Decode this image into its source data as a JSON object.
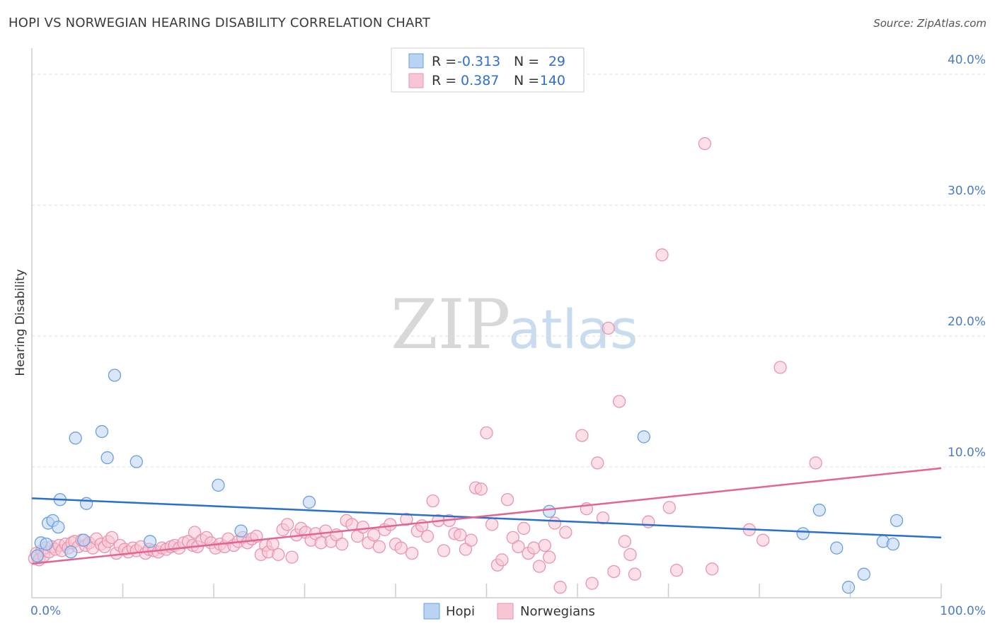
{
  "title": "HOPI VS NORWEGIAN HEARING DISABILITY CORRELATION CHART",
  "source": "Source: ZipAtlas.com",
  "watermark": {
    "zip": "ZIP",
    "atlas": "atlas"
  },
  "colors": {
    "hopi_fill": "#b9d3f3",
    "hopi_stroke": "#6a9fe0",
    "hopi_line": "#2b6fcc",
    "nor_fill": "#f7c6d4",
    "nor_stroke": "#e994b0",
    "nor_line": "#e26492",
    "grid": "#dddddd",
    "tick_text": "#4a7cc7"
  },
  "legend": {
    "rows": [
      {
        "series": "hopi",
        "r_label": "R =",
        "r_value": "-0.313",
        "n_label": "N =",
        "n_value": "29"
      },
      {
        "series": "nor",
        "r_label": "R =",
        "r_value": "0.387",
        "n_label": "N =",
        "n_value": "140"
      }
    ]
  },
  "chart_data": {
    "type": "scatter",
    "title": "HOPI VS NORWEGIAN HEARING DISABILITY CORRELATION CHART",
    "ylabel": "Hearing Disability",
    "xlim": [
      0,
      100
    ],
    "ylim": [
      0,
      42
    ],
    "x_tick_labels": [
      "0.0%",
      "100.0%"
    ],
    "y_ticks": [
      {
        "value": 10,
        "label": "10.0%"
      },
      {
        "value": 20,
        "label": "20.0%"
      },
      {
        "value": 30,
        "label": "30.0%"
      },
      {
        "value": 40,
        "label": "40.0%"
      }
    ],
    "series": [
      {
        "name": "Hopi",
        "key": "hopi",
        "trend": {
          "x": [
            0,
            100
          ],
          "y": [
            7.6,
            4.6
          ]
        },
        "points": [
          [
            0.6,
            3.2
          ],
          [
            1.0,
            4.2
          ],
          [
            1.6,
            4.1
          ],
          [
            1.8,
            5.7
          ],
          [
            2.3,
            5.9
          ],
          [
            2.9,
            5.4
          ],
          [
            3.1,
            7.5
          ],
          [
            4.3,
            3.5
          ],
          [
            4.8,
            12.2
          ],
          [
            5.7,
            4.4
          ],
          [
            6.0,
            7.2
          ],
          [
            7.7,
            12.7
          ],
          [
            8.3,
            10.7
          ],
          [
            9.1,
            17.0
          ],
          [
            11.5,
            10.4
          ],
          [
            13.0,
            4.3
          ],
          [
            20.5,
            8.6
          ],
          [
            23.0,
            5.1
          ],
          [
            30.5,
            7.3
          ],
          [
            56.9,
            6.6
          ],
          [
            67.3,
            12.3
          ],
          [
            84.8,
            4.9
          ],
          [
            86.6,
            6.7
          ],
          [
            88.5,
            3.8
          ],
          [
            89.8,
            0.8
          ],
          [
            91.5,
            1.8
          ],
          [
            93.6,
            4.3
          ],
          [
            94.7,
            4.1
          ],
          [
            95.1,
            5.9
          ]
        ]
      },
      {
        "name": "Norwegians",
        "key": "nor",
        "trend": {
          "x": [
            0,
            100
          ],
          "y": [
            2.6,
            9.9
          ]
        },
        "points": [
          [
            0.3,
            3.0
          ],
          [
            0.5,
            3.4
          ],
          [
            0.8,
            2.9
          ],
          [
            1.1,
            3.6
          ],
          [
            1.3,
            3.2
          ],
          [
            1.5,
            3.8
          ],
          [
            1.9,
            3.5
          ],
          [
            2.2,
            3.9
          ],
          [
            2.6,
            3.7
          ],
          [
            3.0,
            4.0
          ],
          [
            3.3,
            3.6
          ],
          [
            3.7,
            4.1
          ],
          [
            4.0,
            3.8
          ],
          [
            4.4,
            4.2
          ],
          [
            4.7,
            4.3
          ],
          [
            5.1,
            3.9
          ],
          [
            5.5,
            4.4
          ],
          [
            5.9,
            4.0
          ],
          [
            6.3,
            4.2
          ],
          [
            6.7,
            3.8
          ],
          [
            7.1,
            4.5
          ],
          [
            7.6,
            4.1
          ],
          [
            8.0,
            3.9
          ],
          [
            8.4,
            4.3
          ],
          [
            8.8,
            4.6
          ],
          [
            9.3,
            3.4
          ],
          [
            9.7,
            4.0
          ],
          [
            10.2,
            3.7
          ],
          [
            10.6,
            3.5
          ],
          [
            11.1,
            3.8
          ],
          [
            11.5,
            3.6
          ],
          [
            12.0,
            3.9
          ],
          [
            12.5,
            3.4
          ],
          [
            12.9,
            3.7
          ],
          [
            13.4,
            3.6
          ],
          [
            13.9,
            3.5
          ],
          [
            14.3,
            3.8
          ],
          [
            14.8,
            3.7
          ],
          [
            15.3,
            3.9
          ],
          [
            15.7,
            4.0
          ],
          [
            16.2,
            3.8
          ],
          [
            16.7,
            4.2
          ],
          [
            17.2,
            4.3
          ],
          [
            17.7,
            4.0
          ],
          [
            17.9,
            5.0
          ],
          [
            18.2,
            3.9
          ],
          [
            18.7,
            4.4
          ],
          [
            19.2,
            4.6
          ],
          [
            19.7,
            4.2
          ],
          [
            20.2,
            3.8
          ],
          [
            20.7,
            4.1
          ],
          [
            21.2,
            3.9
          ],
          [
            21.6,
            4.5
          ],
          [
            22.2,
            4.0
          ],
          [
            22.7,
            4.3
          ],
          [
            23.2,
            4.6
          ],
          [
            23.7,
            4.2
          ],
          [
            24.2,
            4.5
          ],
          [
            24.7,
            4.7
          ],
          [
            25.2,
            3.3
          ],
          [
            25.7,
            4.0
          ],
          [
            26.0,
            3.5
          ],
          [
            26.5,
            4.1
          ],
          [
            27.1,
            3.3
          ],
          [
            27.6,
            5.2
          ],
          [
            28.1,
            5.6
          ],
          [
            28.6,
            3.1
          ],
          [
            29.1,
            4.8
          ],
          [
            29.6,
            5.3
          ],
          [
            30.1,
            5.0
          ],
          [
            30.7,
            4.4
          ],
          [
            31.2,
            4.9
          ],
          [
            31.8,
            4.2
          ],
          [
            32.3,
            5.1
          ],
          [
            32.9,
            4.3
          ],
          [
            33.5,
            4.8
          ],
          [
            34.1,
            4.1
          ],
          [
            34.6,
            5.9
          ],
          [
            35.2,
            5.6
          ],
          [
            35.8,
            4.7
          ],
          [
            36.4,
            5.4
          ],
          [
            37.0,
            4.2
          ],
          [
            37.6,
            4.8
          ],
          [
            38.2,
            3.9
          ],
          [
            38.8,
            5.2
          ],
          [
            39.4,
            5.6
          ],
          [
            40.0,
            4.1
          ],
          [
            40.6,
            3.8
          ],
          [
            41.2,
            6.0
          ],
          [
            41.8,
            3.4
          ],
          [
            42.4,
            5.1
          ],
          [
            42.9,
            5.5
          ],
          [
            43.5,
            4.7
          ],
          [
            44.1,
            7.4
          ],
          [
            44.7,
            5.9
          ],
          [
            45.3,
            3.6
          ],
          [
            45.9,
            5.9
          ],
          [
            46.5,
            4.9
          ],
          [
            47.1,
            4.8
          ],
          [
            47.7,
            3.7
          ],
          [
            48.3,
            4.4
          ],
          [
            48.8,
            8.4
          ],
          [
            49.4,
            8.3
          ],
          [
            50.0,
            12.6
          ],
          [
            50.6,
            5.6
          ],
          [
            51.2,
            2.5
          ],
          [
            51.7,
            2.9
          ],
          [
            52.3,
            7.5
          ],
          [
            52.9,
            4.6
          ],
          [
            53.5,
            3.9
          ],
          [
            54.1,
            5.3
          ],
          [
            54.6,
            3.4
          ],
          [
            55.2,
            3.8
          ],
          [
            55.8,
            2.4
          ],
          [
            56.4,
            4.0
          ],
          [
            56.9,
            3.1
          ],
          [
            57.5,
            5.7
          ],
          [
            58.1,
            0.8
          ],
          [
            58.7,
            5.0
          ],
          [
            60.5,
            12.4
          ],
          [
            61.0,
            6.8
          ],
          [
            61.6,
            1.1
          ],
          [
            62.2,
            10.3
          ],
          [
            62.8,
            6.1
          ],
          [
            63.4,
            20.6
          ],
          [
            64.0,
            2.0
          ],
          [
            64.6,
            15.0
          ],
          [
            65.2,
            4.3
          ],
          [
            65.8,
            3.3
          ],
          [
            66.3,
            1.8
          ],
          [
            67.8,
            5.8
          ],
          [
            69.3,
            26.2
          ],
          [
            70.1,
            6.9
          ],
          [
            70.9,
            2.1
          ],
          [
            74.0,
            34.7
          ],
          [
            74.8,
            2.2
          ],
          [
            78.9,
            5.2
          ],
          [
            80.4,
            4.4
          ],
          [
            82.3,
            17.6
          ],
          [
            86.2,
            10.3
          ]
        ]
      }
    ],
    "bottom_legend": [
      "Hopi",
      "Norwegians"
    ]
  }
}
